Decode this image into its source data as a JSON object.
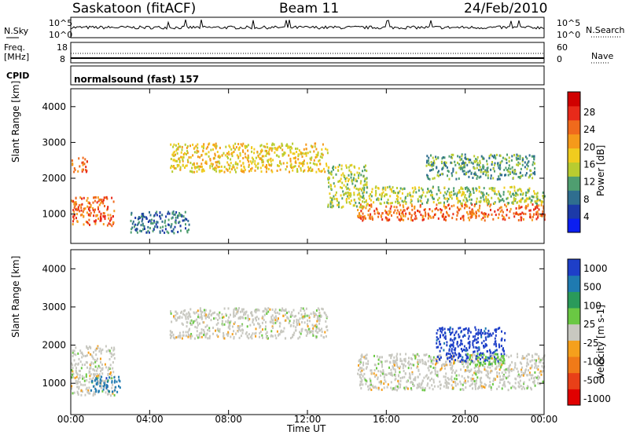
{
  "header": {
    "station": "Saskatoon (fitACF)",
    "beam": "Beam 11",
    "date": "24/Feb/2010"
  },
  "params": {
    "nsky_label": "N.Sky",
    "nsky_ticks": [
      "10^5",
      "10^0"
    ],
    "nsearch_label": "N.Search",
    "freq_label_1": "Freq.",
    "freq_label_2": "[MHz]",
    "freq_ticks": [
      "18",
      "8"
    ],
    "nave_label": "Nave",
    "nave_ticks": [
      "60",
      "0"
    ],
    "cpid_label": "CPID",
    "cpid_text": "normalsound (fast) 157"
  },
  "colors": {
    "power": [
      "#0b1ef0",
      "#1c3aa8",
      "#2f6e8f",
      "#4f9e70",
      "#b8cc30",
      "#f0cc1e",
      "#f59a1a",
      "#f06a1c",
      "#e82a1a",
      "#d00000"
    ],
    "velocity": [
      "#1e3fc8",
      "#1f7ab0",
      "#2a9a5a",
      "#6ac843",
      "#c8c8c0",
      "#f5a01c",
      "#f07a18",
      "#e84018",
      "#e00000"
    ]
  },
  "chart_data": [
    {
      "type": "heatmap",
      "panel": "power",
      "xlabel": "Time UT",
      "ylabel": "Slant Range [km]",
      "x_ticks": [
        "00:00",
        "04:00",
        "08:00",
        "12:00",
        "16:00",
        "20:00",
        "00:00"
      ],
      "y_ticks": [
        1000,
        2000,
        3000,
        4000
      ],
      "xlim_hours": [
        0,
        24
      ],
      "ylim_km": [
        180,
        4500
      ],
      "colorbar": {
        "label": "Power [dB]",
        "ticks": [
          "28",
          "24",
          "20",
          "16",
          "12",
          "8",
          "4"
        ],
        "range": [
          0,
          30
        ]
      },
      "regions": [
        {
          "t": [
            0.0,
            2.2
          ],
          "r": [
            700,
            1500
          ],
          "dB": 22
        },
        {
          "t": [
            0.0,
            0.8
          ],
          "r": [
            2200,
            2600
          ],
          "dB": 24
        },
        {
          "t": [
            3.0,
            6.0
          ],
          "r": [
            500,
            1100
          ],
          "dB": 8
        },
        {
          "t": [
            5.0,
            13.0
          ],
          "r": [
            2200,
            3000
          ],
          "dB": 18
        },
        {
          "t": [
            13.0,
            15.0
          ],
          "r": [
            1200,
            2400
          ],
          "dB": 14
        },
        {
          "t": [
            14.5,
            24.0
          ],
          "r": [
            850,
            1300
          ],
          "dB": 24
        },
        {
          "t": [
            14.5,
            24.0
          ],
          "r": [
            1300,
            1800
          ],
          "dB": 12
        },
        {
          "t": [
            18.0,
            23.5
          ],
          "r": [
            2000,
            2700
          ],
          "dB": 10
        }
      ]
    },
    {
      "type": "heatmap",
      "panel": "velocity",
      "xlabel": "Time UT",
      "ylabel": "Slant Range [km]",
      "x_ticks": [
        "00:00",
        "04:00",
        "08:00",
        "12:00",
        "16:00",
        "20:00",
        "00:00"
      ],
      "y_ticks": [
        1000,
        2000,
        3000,
        4000
      ],
      "xlim_hours": [
        0,
        24
      ],
      "ylim_km": [
        180,
        4500
      ],
      "colorbar": {
        "label": "Velocity [m s-1]",
        "ticks": [
          "1000",
          "500",
          "100",
          "25",
          "-25",
          "-100",
          "-500",
          "-1000"
        ],
        "range": [
          -1000,
          1000
        ]
      },
      "regions": [
        {
          "t": [
            0.0,
            2.2
          ],
          "r": [
            700,
            2000
          ],
          "v": 0
        },
        {
          "t": [
            1.0,
            2.5
          ],
          "r": [
            800,
            1200
          ],
          "v": 400
        },
        {
          "t": [
            5.0,
            13.0
          ],
          "r": [
            2200,
            3000
          ],
          "v": 0
        },
        {
          "t": [
            14.5,
            24.0
          ],
          "r": [
            850,
            1800
          ],
          "v": 0
        },
        {
          "t": [
            18.5,
            22.0
          ],
          "r": [
            1600,
            2500
          ],
          "v": 600
        },
        {
          "t": [
            20.0,
            22.0
          ],
          "r": [
            1500,
            1800
          ],
          "v": 80
        }
      ]
    }
  ]
}
